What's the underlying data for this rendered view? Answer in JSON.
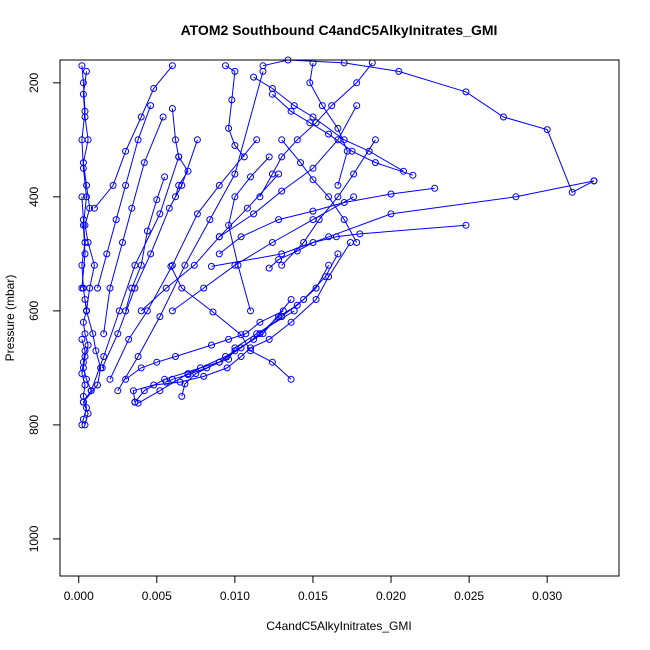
{
  "chart_data": {
    "type": "line",
    "title": "ATOM2 Southbound C4andC5AlkyInitrates_GMI",
    "xlabel": "C4andC5AlkyInitrates_GMI",
    "ylabel": "Pressure (mbar)",
    "xlim": [
      -0.0012,
      0.0346
    ],
    "ylim": [
      1065,
      160
    ],
    "y_reversed": true,
    "x_ticks": [
      "0.000",
      "0.005",
      "0.010",
      "0.015",
      "0.020",
      "0.025",
      "0.030"
    ],
    "x_tick_values": [
      0,
      0.005,
      0.01,
      0.015,
      0.02,
      0.025,
      0.03
    ],
    "y_ticks": [
      "200",
      "400",
      "600",
      "800",
      "1000"
    ],
    "y_tick_values": [
      200,
      400,
      600,
      800,
      1000
    ],
    "grid": false,
    "legend": "none",
    "series_color": "#0000ff",
    "marker": "open-circle",
    "series": [
      {
        "x": [
          0.0004,
          0.0006,
          0.0003,
          0.0008,
          0.0005,
          0.0003,
          0.0004,
          0.0006,
          0.0004,
          0.0003,
          0.0005,
          0.0004
        ],
        "y": [
          800,
          780,
          760,
          740,
          720,
          700,
          680,
          660,
          640,
          620,
          600,
          580
        ]
      },
      {
        "x": [
          0.0002,
          0.0003,
          0.0005,
          0.0003,
          0.0004,
          0.0002,
          0.0003,
          0.0004,
          0.0002
        ],
        "y": [
          800,
          790,
          770,
          750,
          730,
          710,
          690,
          670,
          650
        ]
      },
      {
        "x": [
          0.0003,
          0.0012,
          0.0014,
          0.0011,
          0.0009,
          0.0005,
          0.0003,
          0.0002,
          0.0004,
          0.0003,
          0.0002
        ],
        "y": [
          760,
          730,
          700,
          670,
          640,
          600,
          560,
          520,
          480,
          440,
          400
        ]
      },
      {
        "x": [
          0.0005,
          0.0007,
          0.001,
          0.0006,
          0.0004,
          0.0007,
          0.0005,
          0.0003,
          0.0006,
          0.0004,
          0.0003,
          0.0005
        ],
        "y": [
          600,
          560,
          520,
          480,
          450,
          420,
          380,
          340,
          300,
          260,
          220,
          180
        ]
      },
      {
        "x": [
          0.0002,
          0.0004,
          0.0003,
          0.0005,
          0.0003,
          0.0002,
          0.0004,
          0.0003,
          0.0002
        ],
        "y": [
          560,
          500,
          450,
          400,
          350,
          300,
          250,
          200,
          170
        ]
      },
      {
        "x": [
          0.0036,
          0.0035,
          0.0048,
          0.0065,
          0.008,
          0.0095,
          0.0104,
          0.011,
          0.0122,
          0.0136,
          0.0152,
          0.016,
          0.0174
        ],
        "y": [
          760,
          740,
          730,
          725,
          715,
          700,
          680,
          665,
          650,
          620,
          580,
          540,
          480
        ]
      },
      {
        "x": [
          0.0056,
          0.006,
          0.007,
          0.0082,
          0.009,
          0.01,
          0.0112,
          0.0128,
          0.014,
          0.0152,
          0.016
        ],
        "y": [
          725,
          720,
          712,
          700,
          690,
          670,
          650,
          610,
          590,
          560,
          520
        ]
      },
      {
        "x": [
          0.0066,
          0.0068,
          0.0075,
          0.009,
          0.0104,
          0.0116,
          0.013,
          0.0144,
          0.0158,
          0.0166
        ],
        "y": [
          750,
          728,
          710,
          690,
          665,
          640,
          610,
          580,
          540,
          500
        ]
      },
      {
        "x": [
          0.0036,
          0.0042,
          0.0055,
          0.0078,
          0.0096,
          0.01,
          0.0114,
          0.0138
        ],
        "y": [
          760,
          740,
          720,
          700,
          685,
          665,
          640,
          600
        ]
      },
      {
        "x": [
          0.003,
          0.004,
          0.005,
          0.0062,
          0.0085,
          0.0096,
          0.0107,
          0.0116,
          0.0131
        ],
        "y": [
          720,
          700,
          690,
          680,
          660,
          650,
          640,
          620,
          600
        ]
      },
      {
        "x": [
          0.0059,
          0.0066,
          0.0086,
          0.0104,
          0.011,
          0.0124,
          0.0136
        ],
        "y": [
          522,
          560,
          602,
          642,
          670,
          690,
          720
        ]
      },
      {
        "x": [
          0.033,
          0.0316,
          0.03,
          0.0272,
          0.0248,
          0.0205,
          0.017,
          0.0134,
          0.0118
        ],
        "y": [
          372,
          392,
          282,
          260,
          216,
          180,
          165,
          160,
          170
        ]
      },
      {
        "x": [
          0.0248,
          0.018,
          0.0165,
          0.015,
          0.014,
          0.0128,
          0.0122
        ],
        "y": [
          450,
          465,
          470,
          480,
          495,
          510,
          525
        ]
      },
      {
        "x": [
          0.033,
          0.028,
          0.02,
          0.016,
          0.013,
          0.0085
        ],
        "y": [
          372,
          400,
          430,
          470,
          500,
          522
        ]
      },
      {
        "x": [
          0.0228,
          0.02,
          0.017,
          0.015,
          0.0128,
          0.0104,
          0.009
        ],
        "y": [
          385,
          395,
          410,
          425,
          440,
          470,
          500
        ]
      },
      {
        "x": [
          0.0214,
          0.019,
          0.0175,
          0.016,
          0.0148,
          0.0136,
          0.0124
        ],
        "y": [
          362,
          340,
          320,
          290,
          270,
          250,
          220
        ]
      },
      {
        "x": [
          0.0208,
          0.0186,
          0.017,
          0.015,
          0.0138,
          0.0124,
          0.0112
        ],
        "y": [
          355,
          320,
          300,
          260,
          240,
          210,
          190
        ]
      },
      {
        "x": [
          0.0178,
          0.017,
          0.016,
          0.015,
          0.0142,
          0.013
        ],
        "y": [
          480,
          440,
          400,
          370,
          340,
          300
        ]
      },
      {
        "x": [
          0.0122,
          0.011,
          0.01,
          0.0096,
          0.0102,
          0.011
        ],
        "y": [
          330,
          365,
          400,
          450,
          520,
          600
        ]
      },
      {
        "x": [
          0.0094,
          0.01,
          0.0098,
          0.0096,
          0.01,
          0.0106
        ],
        "y": [
          170,
          180,
          230,
          280,
          310,
          330
        ]
      },
      {
        "x": [
          0.006,
          0.0062,
          0.0064,
          0.007,
          0.0064,
          0.0062
        ],
        "y": [
          245,
          300,
          330,
          355,
          380,
          400
        ]
      },
      {
        "x": [
          0.0055,
          0.005,
          0.0044,
          0.004,
          0.0034,
          0.003
        ],
        "y": [
          365,
          405,
          460,
          520,
          560,
          600
        ]
      },
      {
        "x": [
          0.0015,
          0.0025,
          0.0036,
          0.0046,
          0.0058,
          0.0066,
          0.0076
        ],
        "y": [
          700,
          640,
          560,
          500,
          420,
          380,
          300
        ]
      },
      {
        "x": [
          0.002,
          0.0032,
          0.0044,
          0.006,
          0.0076,
          0.009,
          0.0114
        ],
        "y": [
          720,
          650,
          600,
          520,
          430,
          380,
          300
        ]
      },
      {
        "x": [
          0.0025,
          0.0038,
          0.0052,
          0.0068,
          0.0084,
          0.01,
          0.0118
        ],
        "y": [
          740,
          680,
          610,
          520,
          440,
          360,
          180
        ]
      },
      {
        "x": [
          0.0008,
          0.0016,
          0.0026,
          0.0036,
          0.0052,
          0.0064
        ],
        "y": [
          740,
          680,
          600,
          520,
          430,
          330
        ]
      },
      {
        "x": [
          0.0012,
          0.0018,
          0.0024,
          0.003,
          0.0038,
          0.0046
        ],
        "y": [
          560,
          500,
          440,
          380,
          300,
          240
        ]
      },
      {
        "x": [
          0.001,
          0.0022,
          0.003,
          0.004,
          0.0048,
          0.006
        ],
        "y": [
          420,
          380,
          320,
          260,
          210,
          170
        ]
      },
      {
        "x": [
          0.0016,
          0.002,
          0.0028,
          0.0034,
          0.0042,
          0.0054
        ],
        "y": [
          640,
          560,
          480,
          420,
          340,
          260
        ]
      },
      {
        "x": [
          0.0188,
          0.0178,
          0.0162,
          0.0152,
          0.014,
          0.013,
          0.0124,
          0.0116
        ],
        "y": [
          165,
          200,
          240,
          270,
          300,
          330,
          360,
          400
        ]
      },
      {
        "x": [
          0.015,
          0.0148,
          0.0156,
          0.0166,
          0.0172,
          0.0166
        ],
        "y": [
          165,
          200,
          240,
          280,
          320,
          380
        ]
      },
      {
        "x": [
          0.0038,
          0.0052,
          0.007,
          0.0094,
          0.0118,
          0.0136
        ],
        "y": [
          762,
          740,
          710,
          680,
          640,
          580
        ]
      },
      {
        "x": [
          0.004,
          0.0056,
          0.0074,
          0.009,
          0.0108,
          0.0128
        ],
        "y": [
          600,
          560,
          520,
          470,
          420,
          360
        ]
      },
      {
        "x": [
          0.006,
          0.008,
          0.01,
          0.0124,
          0.015,
          0.0176
        ],
        "y": [
          600,
          560,
          520,
          480,
          440,
          400
        ]
      },
      {
        "x": [
          0.009,
          0.0112,
          0.013,
          0.015,
          0.0166,
          0.0178
        ],
        "y": [
          470,
          430,
          390,
          350,
          300,
          240
        ]
      },
      {
        "x": [
          0.013,
          0.0144,
          0.0154,
          0.0166,
          0.0176,
          0.019
        ],
        "y": [
          520,
          480,
          440,
          400,
          360,
          300
        ]
      }
    ]
  }
}
